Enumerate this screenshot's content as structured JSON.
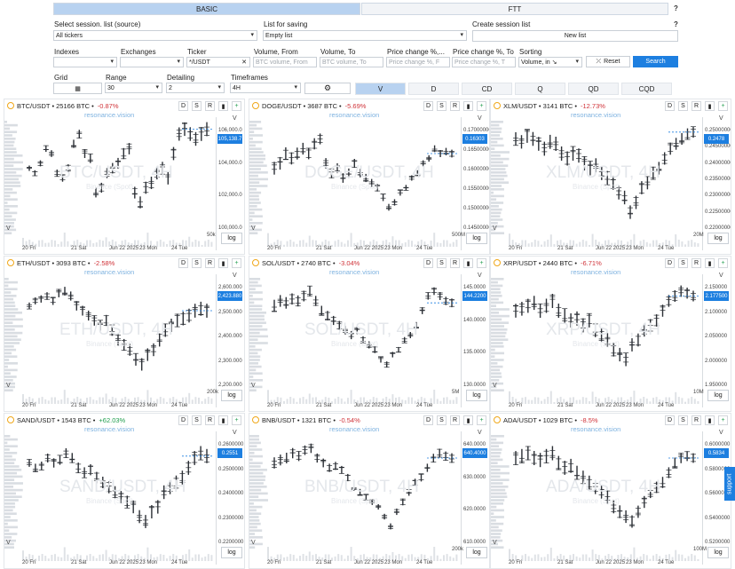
{
  "tabs": [
    {
      "label": "BASIC",
      "active": true
    },
    {
      "label": "FTT",
      "active": false
    }
  ],
  "help_symbol": "?",
  "session": {
    "select_label": "Select session. list (source)",
    "select_value": "All tickers",
    "save_label": "List for saving",
    "save_value": "Empty list",
    "create_label": "Create session list",
    "new_list_button": "New list"
  },
  "filters": {
    "indexes_label": "Indexes",
    "exchanges_label": "Exchanges",
    "ticker_label": "Ticker",
    "ticker_value": "*/USDT",
    "clear_symbol": "✕",
    "volume_from_label": "Volume, From",
    "volume_from_placeholder": "BTC volume, From",
    "volume_to_label": "Volume, To",
    "volume_to_placeholder": "BTC volume, To",
    "pchange_from_label": "Price change %,...",
    "pchange_from_placeholder": "Price change %, F",
    "pchange_to_label": "Price change %, To",
    "pchange_to_placeholder": "Price change %, T",
    "sorting_label": "Sorting",
    "sorting_value": "Volume, in ↘",
    "reset_label": "Reset",
    "search_label": "Search"
  },
  "controls": {
    "grid_label": "Grid",
    "range_label": "Range",
    "range_value": "30",
    "detailing_label": "Detailing",
    "detailing_value": "2",
    "timeframes_label": "Timeframes",
    "timeframes_value": "4H"
  },
  "timeframes": [
    {
      "label": "V",
      "active": true
    },
    {
      "label": "D",
      "active": false
    },
    {
      "label": "CD",
      "active": false
    },
    {
      "label": "Q",
      "active": false
    },
    {
      "label": "QD",
      "active": false
    },
    {
      "label": "CQD",
      "active": false
    }
  ],
  "toolbar_buttons": [
    "D",
    "S",
    "R"
  ],
  "watermark": "resonance.vision",
  "log_label": "log",
  "v_label": "V",
  "x_labels": [
    "20 Fri",
    "21 Sat",
    "Jun 22 2025",
    "23 Mon",
    "24 Tue"
  ],
  "support_label": "support",
  "panels": [
    {
      "symbol": "BTC/USDT",
      "btc": "25166 BTC",
      "change": "-0.87%",
      "up": false,
      "big": "BTC/USDT, 4H",
      "sub": "Binance (Spot)",
      "price": "105,138.7",
      "vol": "50k",
      "yticks": [
        "106,000.0",
        "104,000.0",
        "102,000.0",
        "100,000.0"
      ],
      "trend": [
        0.55,
        0.5,
        0.6,
        0.75,
        0.7,
        0.5,
        0.45,
        0.55,
        0.8,
        0.9,
        0.7,
        0.65,
        0.3,
        0.35,
        0.5,
        0.55,
        0.6,
        0.7,
        0.75,
        0.3,
        0.2,
        0.35,
        0.4,
        0.5,
        0.55,
        0.45,
        0.7,
        0.9,
        0.95,
        0.9,
        0.85,
        0.9,
        0.95
      ]
    },
    {
      "symbol": "DOGE/USDT",
      "btc": "3687 BTC",
      "change": "-5.69%",
      "up": false,
      "big": "DOGE/USDT, 4H",
      "sub": "Binance (Spot)",
      "price": "0.16303",
      "vol": "500M",
      "yticks": [
        "0.17000000",
        "0.16500000",
        "0.16000000",
        "0.15500000",
        "0.15000000",
        "0.14500000"
      ],
      "trend": [
        0.55,
        0.6,
        0.7,
        0.65,
        0.7,
        0.75,
        0.7,
        0.8,
        0.85,
        0.6,
        0.5,
        0.55,
        0.45,
        0.5,
        0.6,
        0.5,
        0.45,
        0.4,
        0.35,
        0.25,
        0.15,
        0.2,
        0.3,
        0.35,
        0.45,
        0.5,
        0.6,
        0.65,
        0.75,
        0.7,
        0.72,
        0.7
      ]
    },
    {
      "symbol": "XLM/USDT",
      "btc": "3141 BTC",
      "change": "-12.73%",
      "up": false,
      "big": "XLM/USDT, 4H",
      "sub": "Binance (Spot)",
      "price": "0.2478",
      "vol": "20M",
      "yticks": [
        "0.25000000",
        "0.24500000",
        "0.24000000",
        "0.23500000",
        "0.23000000",
        "0.22500000",
        "0.22000000"
      ],
      "trend": [
        0.85,
        0.82,
        0.88,
        0.85,
        0.8,
        0.75,
        0.82,
        0.8,
        0.7,
        0.65,
        0.7,
        0.68,
        0.6,
        0.55,
        0.58,
        0.5,
        0.45,
        0.4,
        0.3,
        0.25,
        0.1,
        0.2,
        0.35,
        0.4,
        0.5,
        0.55,
        0.65,
        0.75,
        0.8,
        0.85,
        0.9,
        0.92
      ]
    },
    {
      "symbol": "ETH/USDT",
      "btc": "3093 BTC",
      "change": "-2.58%",
      "up": false,
      "big": "ETH/USDT, 4H",
      "sub": "Binance (Spot)",
      "price": "2,423.880",
      "vol": "200k",
      "yticks": [
        "2,600.000",
        "2,500.000",
        "2,400.000",
        "2,300.000",
        "2,200.000"
      ],
      "trend": [
        0.75,
        0.8,
        0.82,
        0.85,
        0.8,
        0.88,
        0.9,
        0.85,
        0.75,
        0.7,
        0.65,
        0.6,
        0.55,
        0.6,
        0.5,
        0.4,
        0.35,
        0.3,
        0.2,
        0.15,
        0.25,
        0.3,
        0.4,
        0.5,
        0.55,
        0.6,
        0.62,
        0.65,
        0.7,
        0.72,
        0.7
      ]
    },
    {
      "symbol": "SOL/USDT",
      "btc": "2740 BTC",
      "change": "-3.04%",
      "up": false,
      "big": "SOL/USDT, 4H",
      "sub": "Binance (Spot)",
      "price": "144.2200",
      "vol": "5M",
      "yticks": [
        "145.0000",
        "140.0000",
        "135.0000",
        "130.0000"
      ],
      "trend": [
        0.75,
        0.8,
        0.78,
        0.82,
        0.8,
        0.85,
        0.9,
        0.8,
        0.7,
        0.65,
        0.6,
        0.55,
        0.5,
        0.45,
        0.5,
        0.4,
        0.35,
        0.3,
        0.2,
        0.15,
        0.25,
        0.3,
        0.4,
        0.45,
        0.55,
        0.7,
        0.85,
        0.9,
        0.85,
        0.8,
        0.78
      ]
    },
    {
      "symbol": "XRP/USDT",
      "btc": "2440 BTC",
      "change": "-6.71%",
      "up": false,
      "big": "XRP/USDT, 4H",
      "sub": "Binance (Spot)",
      "price": "2.177500",
      "vol": "10M",
      "yticks": [
        "2.150000",
        "2.100000",
        "2.050000",
        "2.000000",
        "1.950000"
      ],
      "trend": [
        0.7,
        0.72,
        0.75,
        0.78,
        0.7,
        0.75,
        0.8,
        0.7,
        0.65,
        0.6,
        0.62,
        0.55,
        0.6,
        0.5,
        0.45,
        0.4,
        0.3,
        0.25,
        0.2,
        0.35,
        0.4,
        0.5,
        0.55,
        0.6,
        0.7,
        0.8,
        0.85,
        0.9,
        0.88,
        0.85
      ]
    },
    {
      "symbol": "SAND/USDT",
      "btc": "1543 BTC",
      "change": "+62.03%",
      "up": true,
      "big": "SAND/USDT, 4H",
      "sub": "Binance (Spot)",
      "price": "0.2551",
      "vol": "",
      "yticks": [
        "0.2600000",
        "0.2500000",
        "0.2400000",
        "0.2300000",
        "0.2200000"
      ],
      "trend": [
        0.75,
        0.7,
        0.72,
        0.8,
        0.75,
        0.78,
        0.85,
        0.8,
        0.7,
        0.65,
        0.68,
        0.6,
        0.55,
        0.5,
        0.45,
        0.4,
        0.35,
        0.3,
        0.2,
        0.15,
        0.25,
        0.3,
        0.45,
        0.5,
        0.55,
        0.6,
        0.7,
        0.8,
        0.85,
        0.82
      ]
    },
    {
      "symbol": "BNB/USDT",
      "btc": "1321 BTC",
      "change": "-0.54%",
      "up": false,
      "big": "BNB/USDT, 4H",
      "sub": "Binance (Spot)",
      "price": "640.4000",
      "vol": "200k",
      "yticks": [
        "640.0000",
        "630.0000",
        "620.0000",
        "610.0000"
      ],
      "trend": [
        0.75,
        0.78,
        0.8,
        0.85,
        0.82,
        0.88,
        0.9,
        0.8,
        0.75,
        0.7,
        0.72,
        0.68,
        0.6,
        0.5,
        0.45,
        0.4,
        0.35,
        0.3,
        0.2,
        0.1,
        0.25,
        0.35,
        0.45,
        0.55,
        0.6,
        0.7,
        0.8,
        0.85,
        0.82,
        0.8
      ]
    },
    {
      "symbol": "ADA/USDT",
      "btc": "1029 BTC",
      "change": "-8.5%",
      "up": false,
      "big": "ADA/USDT, 4H",
      "sub": "Binance (Spot)",
      "price": "0.5834",
      "vol": "100M",
      "yticks": [
        "0.6000000",
        "0.5800000",
        "0.5600000",
        "0.5400000",
        "0.5200000"
      ],
      "trend": [
        0.8,
        0.82,
        0.85,
        0.8,
        0.78,
        0.82,
        0.85,
        0.75,
        0.7,
        0.72,
        0.65,
        0.6,
        0.55,
        0.5,
        0.45,
        0.4,
        0.3,
        0.25,
        0.2,
        0.15,
        0.25,
        0.35,
        0.45,
        0.5,
        0.55,
        0.65,
        0.75,
        0.8,
        0.82,
        0.8
      ]
    }
  ]
}
